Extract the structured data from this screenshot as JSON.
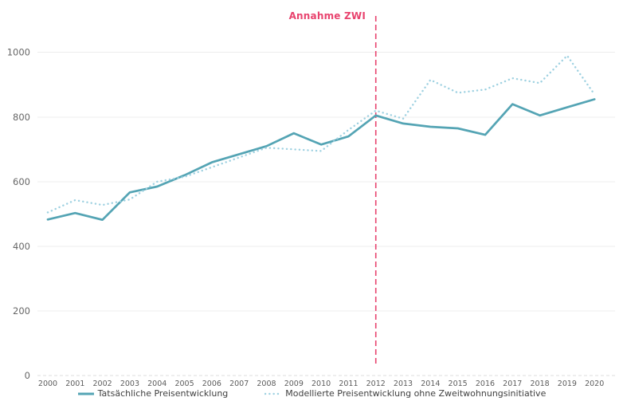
{
  "annotation": {
    "label": "Annahme ZWI",
    "x_year": 2012,
    "color": "#e8436e"
  },
  "colors": {
    "actual_line": "#54a4b4",
    "modeled_line": "#9ed1e1",
    "marker_line": "#e8436e",
    "grid": "#ececec",
    "tick_text": "#5c5c5c"
  },
  "chart_data": {
    "type": "line",
    "x": [
      2000,
      2001,
      2002,
      2003,
      2004,
      2005,
      2006,
      2007,
      2008,
      2009,
      2010,
      2011,
      2012,
      2013,
      2014,
      2015,
      2016,
      2017,
      2018,
      2019,
      2020
    ],
    "series": [
      {
        "name": "Tatsächliche Preisentwicklung",
        "style": "solid",
        "color": "#54a4b4",
        "values": [
          483,
          503,
          482,
          567,
          585,
          620,
          660,
          685,
          710,
          750,
          715,
          740,
          805,
          780,
          770,
          765,
          745,
          840,
          805,
          830,
          855
        ]
      },
      {
        "name": "Modellierte Preisentwicklung ohne Zweitwohnungsinitiative",
        "style": "dotted",
        "color": "#9ed1e1",
        "values": [
          505,
          543,
          528,
          545,
          600,
          615,
          645,
          675,
          705,
          700,
          695,
          760,
          820,
          795,
          915,
          875,
          885,
          920,
          905,
          990,
          870
        ]
      }
    ],
    "title": "",
    "xlabel": "",
    "ylabel": "",
    "ylim": [
      0,
      1000
    ],
    "yticks": [
      0,
      200,
      400,
      600,
      800,
      1000
    ],
    "grid": true,
    "legend_position": "bottom",
    "annotation": "Annahme ZWI",
    "annotation_x": 2012
  }
}
